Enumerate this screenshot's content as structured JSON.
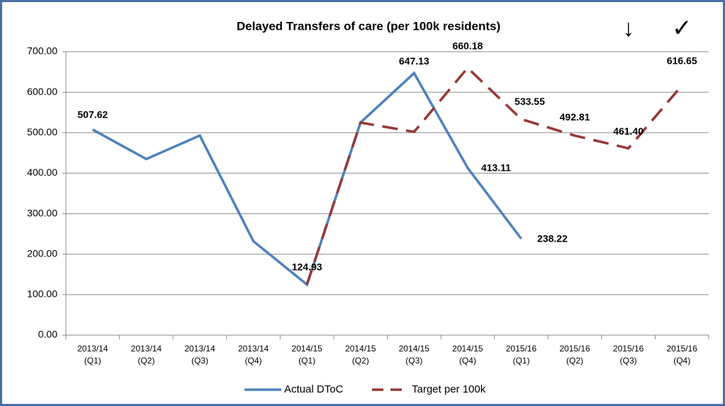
{
  "chart_data": {
    "type": "line",
    "title": "Delayed Transfers of care (per 100k residents)",
    "categories": [
      [
        "2013/14",
        "(Q1)"
      ],
      [
        "2013/14",
        "(Q2)"
      ],
      [
        "2013/14",
        "(Q3)"
      ],
      [
        "2013/14",
        "(Q4)"
      ],
      [
        "2014/15",
        "(Q1)"
      ],
      [
        "2014/15",
        "(Q2)"
      ],
      [
        "2014/15",
        "(Q3)"
      ],
      [
        "2014/15",
        "(Q4)"
      ],
      [
        "2015/16",
        "(Q1)"
      ],
      [
        "2015/16",
        "(Q2)"
      ],
      [
        "2015/16",
        "(Q3)"
      ],
      [
        "2015/16",
        "(Q4)"
      ]
    ],
    "series": [
      {
        "name": "Actual DToC",
        "color": "#4f81bd",
        "dash": false,
        "values": [
          507.62,
          435,
          493,
          232,
          124.93,
          525,
          647.13,
          413.11,
          238.22,
          null,
          null,
          null
        ],
        "value_labels": [
          "507.62",
          null,
          null,
          null,
          "124.93",
          null,
          "647.13",
          "413.11",
          "238.22",
          null,
          null,
          null
        ]
      },
      {
        "name": "Target per 100k",
        "color": "#953735",
        "dash": true,
        "values": [
          null,
          null,
          null,
          null,
          124.93,
          525,
          502,
          660.18,
          533.55,
          492.81,
          461.4,
          616.65
        ],
        "value_labels": [
          null,
          null,
          null,
          null,
          null,
          null,
          null,
          "660.18",
          "533.55",
          "492.81",
          "461.40",
          "616.65"
        ]
      }
    ],
    "ylim": [
      0,
      700
    ],
    "yticks": [
      {
        "value": 0,
        "label": "0.00"
      },
      {
        "value": 100,
        "label": "100.00"
      },
      {
        "value": 200,
        "label": "200.00"
      },
      {
        "value": 300,
        "label": "300.00"
      },
      {
        "value": 400,
        "label": "400.00"
      },
      {
        "value": 500,
        "label": "500.00"
      },
      {
        "value": 600,
        "label": "600.00"
      },
      {
        "value": 700,
        "label": "700.00"
      }
    ],
    "grid": true,
    "legend": "bottom",
    "annotations": [
      {
        "text": "↓",
        "category": 10
      },
      {
        "text": "✓",
        "category": 11
      }
    ]
  }
}
